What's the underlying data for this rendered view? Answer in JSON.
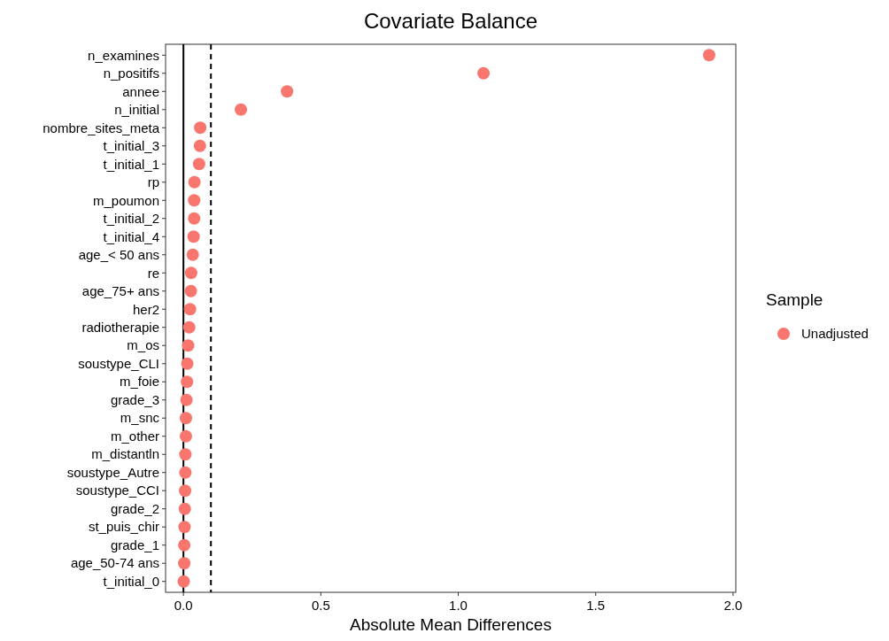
{
  "chart_data": {
    "type": "scatter",
    "orientation": "horizontal",
    "title": "Covariate Balance",
    "xlabel": "Absolute Mean Differences",
    "legend_title": "Sample",
    "legend": "right",
    "marker": "circle",
    "grid": false,
    "categories": [
      "n_examines",
      "n_positifs",
      "annee",
      "n_initial",
      "nombre_sites_meta",
      "t_initial_3",
      "t_initial_1",
      "rp",
      "m_poumon",
      "t_initial_2",
      "t_initial_4",
      "age_< 50 ans",
      "re",
      "age_75+ ans",
      "her2",
      "radiotherapie",
      "m_os",
      "soustype_CLI",
      "m_foie",
      "grade_3",
      "m_snc",
      "m_other",
      "m_distantln",
      "soustype_Autre",
      "soustype_CCI",
      "grade_2",
      "st_puis_chir",
      "grade_1",
      "age_50-74 ans",
      "t_initial_0"
    ],
    "series": [
      {
        "name": "Unadjusted",
        "color": "#f8766d",
        "values": [
          1.913,
          1.092,
          0.377,
          0.209,
          0.061,
          0.06,
          0.057,
          0.04,
          0.039,
          0.039,
          0.037,
          0.034,
          0.028,
          0.027,
          0.024,
          0.021,
          0.017,
          0.014,
          0.013,
          0.011,
          0.009,
          0.009,
          0.007,
          0.007,
          0.006,
          0.005,
          0.004,
          0.003,
          0.003,
          0.001
        ]
      }
    ],
    "xlim": [
      -0.065,
      2.01
    ],
    "xticks": [
      {
        "value": 0,
        "label": "0.0"
      },
      {
        "value": 0.5,
        "label": "0.5"
      },
      {
        "value": 1,
        "label": "1.0"
      },
      {
        "value": 1.5,
        "label": "1.5"
      },
      {
        "value": 2,
        "label": "2.0"
      }
    ],
    "ref_lines": [
      {
        "axis": "x",
        "value": 0,
        "line_style": "solid",
        "color": "#000000"
      },
      {
        "axis": "x",
        "value": 0.1,
        "line_style": "dashed",
        "color": "#000000"
      }
    ]
  }
}
